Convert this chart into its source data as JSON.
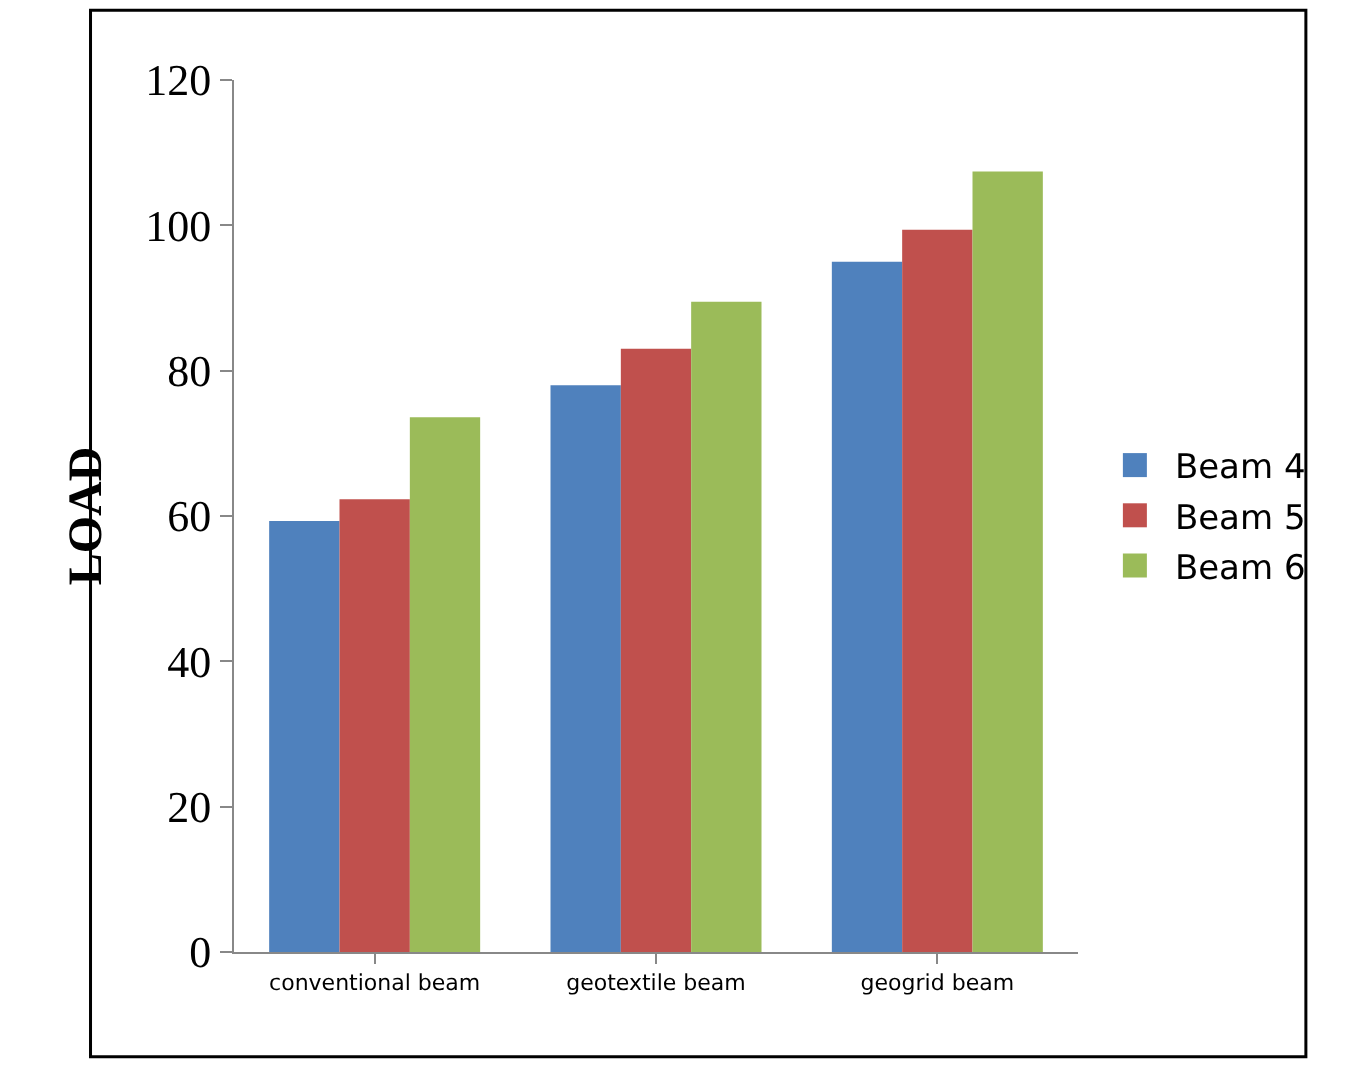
{
  "chart_data": {
    "type": "bar",
    "ylabel": "LOAD",
    "categories": [
      "conventional beam",
      "geotextile beam",
      "geogrid beam"
    ],
    "series": [
      {
        "name": "Beam 4",
        "color": "#4f81bd",
        "values": [
          59.3,
          78,
          95
        ]
      },
      {
        "name": "Beam 5",
        "color": "#c0504d",
        "values": [
          62.3,
          83,
          99.4
        ]
      },
      {
        "name": "Beam 6",
        "color": "#9bbb59",
        "values": [
          73.6,
          89.5,
          107.4
        ]
      }
    ],
    "ylim": [
      0,
      120
    ],
    "yticks": [
      0,
      20,
      40,
      60,
      80,
      100,
      120
    ],
    "legend": "right"
  }
}
